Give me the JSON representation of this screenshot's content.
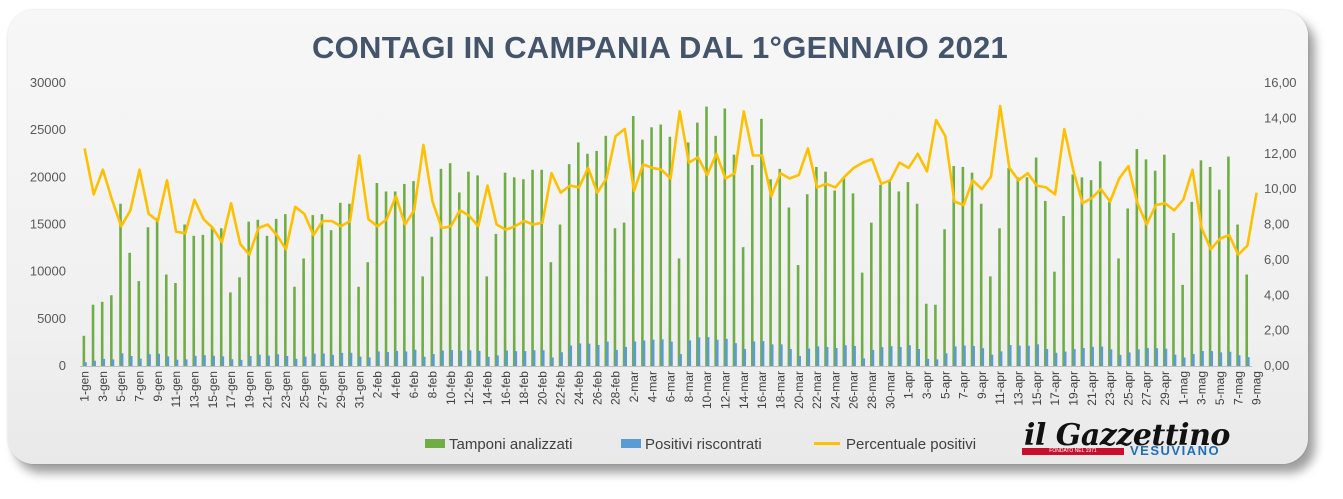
{
  "chart_data": {
    "type": "bar+line",
    "title": "CONTAGI IN CAMPANIA DAL 1°GENNAIO 2021",
    "x_tick_labels": [
      "1-gen",
      "3-gen",
      "5-gen",
      "7-gen",
      "9-gen",
      "11-gen",
      "13-gen",
      "15-gen",
      "17-gen",
      "19-gen",
      "21-gen",
      "23-gen",
      "25-gen",
      "27-gen",
      "29-gen",
      "31-gen",
      "2-feb",
      "4-feb",
      "6-feb",
      "8-feb",
      "10-feb",
      "12-feb",
      "14-feb",
      "16-feb",
      "18-feb",
      "20-feb",
      "22-feb",
      "24-feb",
      "26-feb",
      "28-feb",
      "2-mar",
      "4-mar",
      "6-mar",
      "8-mar",
      "10-mar",
      "12-mar",
      "14-mar",
      "16-mar",
      "18-mar",
      "20-mar",
      "22-mar",
      "24-mar",
      "26-mar",
      "28-mar",
      "30-mar",
      "1-apr",
      "3-apr",
      "5-apr",
      "7-apr",
      "9-apr",
      "11-apr",
      "13-apr",
      "15-apr",
      "17-apr",
      "19-apr",
      "21-apr",
      "23-apr",
      "25-apr",
      "27-apr",
      "29-apr",
      "1-mag",
      "3-mag",
      "5-mag",
      "7-mag",
      "9-mag"
    ],
    "y_left": {
      "min": 0,
      "max": 30000,
      "ticks": [
        "0",
        "5000",
        "10000",
        "15000",
        "20000",
        "25000",
        "30000"
      ]
    },
    "y_right": {
      "min": 0,
      "max": 16,
      "ticks": [
        "0,00",
        "2,00",
        "4,00",
        "6,00",
        "8,00",
        "10,00",
        "12,00",
        "14,00",
        "16,00"
      ]
    },
    "grid": false,
    "legend_position": "bottom",
    "series": [
      {
        "name": "Tamponi analizzati",
        "kind": "bar",
        "axis": "left",
        "color": "#70ad47",
        "values": [
          3200,
          6500,
          6800,
          7500,
          17200,
          12000,
          9000,
          14700,
          15700,
          9700,
          8800,
          15000,
          13800,
          13900,
          14600,
          14600,
          7800,
          9400,
          15300,
          15500,
          13800,
          15600,
          16100,
          8400,
          11400,
          16000,
          16100,
          14400,
          17300,
          17200,
          8400,
          11000,
          19400,
          18500,
          18500,
          19300,
          19600,
          9500,
          13700,
          20900,
          21500,
          18400,
          20600,
          20200,
          9500,
          14000,
          20500,
          20000,
          19800,
          20800,
          20800,
          11000,
          15000,
          21400,
          23700,
          22500,
          22800,
          24400,
          14600,
          15200,
          26500,
          24000,
          25300,
          25600,
          24300,
          11400,
          23700,
          25800,
          27500,
          24400,
          27300,
          22400,
          12600,
          21300,
          26200,
          19800,
          20900,
          16800,
          10700,
          18200,
          21100,
          20600,
          18600,
          20000,
          18300,
          9900,
          15200,
          19200,
          19600,
          18500,
          19500,
          17200,
          6600,
          6500,
          14500,
          21200,
          21100,
          20500,
          17200,
          9500,
          14600,
          21000,
          20000,
          20000,
          22100,
          17500,
          10000,
          15900,
          20300,
          20000,
          19700,
          21700,
          17400,
          11400,
          16700,
          23000,
          21900,
          20700,
          22400,
          14100,
          8600,
          17400,
          21800,
          21100,
          18700,
          22200,
          15000,
          9700
        ]
      },
      {
        "name": "Positivi riscontrati",
        "kind": "bar",
        "axis": "left",
        "color": "#5b9bd5",
        "values": [
          400,
          560,
          750,
          700,
          1350,
          1060,
          780,
          1250,
          1300,
          1020,
          670,
          700,
          1080,
          1150,
          1080,
          1020,
          720,
          650,
          1050,
          1200,
          1100,
          1240,
          1060,
          760,
          1000,
          1310,
          1320,
          1180,
          1390,
          1400,
          1000,
          910,
          1540,
          1480,
          1600,
          1540,
          1720,
          980,
          1270,
          1640,
          1690,
          1620,
          1660,
          1600,
          970,
          1120,
          1640,
          1570,
          1580,
          1670,
          1670,
          900,
          1460,
          2170,
          2390,
          2370,
          2230,
          2590,
          1710,
          2020,
          2600,
          2700,
          2790,
          2820,
          2580,
          1260,
          2710,
          3040,
          3060,
          2780,
          2880,
          2420,
          1810,
          2600,
          2640,
          2290,
          2300,
          1800,
          1070,
          1850,
          2080,
          2020,
          1910,
          2200,
          2120,
          800,
          1700,
          2000,
          2100,
          2020,
          2200,
          1800,
          750,
          700,
          1350,
          2080,
          2160,
          2120,
          1890,
          1200,
          1550,
          2220,
          2150,
          2150,
          2300,
          1800,
          1400,
          1530,
          1790,
          1900,
          2030,
          2060,
          1760,
          1180,
          1440,
          1760,
          1900,
          1890,
          1830,
          1200,
          900,
          1270,
          1590,
          1580,
          1440,
          1510,
          1140,
          940
        ]
      },
      {
        "name": "Percentuale positivi",
        "kind": "line",
        "axis": "right",
        "color": "#ffc000",
        "values": [
          12.3,
          9.7,
          11.1,
          9.4,
          7.9,
          8.8,
          11.1,
          8.6,
          8.2,
          10.5,
          7.6,
          7.5,
          9.4,
          8.3,
          7.8,
          7.0,
          9.2,
          6.9,
          6.3,
          7.8,
          8.0,
          7.4,
          6.6,
          9.0,
          8.6,
          7.4,
          8.2,
          8.2,
          7.9,
          8.2,
          11.9,
          8.3,
          7.9,
          8.3,
          9.6,
          8.0,
          8.8,
          12.5,
          9.3,
          7.8,
          7.9,
          8.8,
          8.5,
          7.9,
          10.2,
          8.0,
          7.7,
          7.9,
          8.2,
          8.0,
          8.1,
          10.9,
          9.8,
          10.2,
          10.1,
          11.2,
          9.8,
          10.6,
          13.0,
          13.4,
          9.9,
          11.4,
          11.2,
          11.1,
          10.6,
          14.4,
          11.5,
          11.8,
          10.8,
          12.0,
          10.6,
          10.9,
          14.4,
          11.9,
          11.9,
          9.6,
          10.9,
          10.6,
          10.8,
          12.3,
          10.1,
          10.3,
          10.1,
          10.7,
          11.2,
          11.5,
          11.7,
          10.3,
          10.5,
          11.5,
          11.2,
          12.0,
          11.0,
          13.9,
          13.0,
          9.3,
          9.1,
          10.5,
          10.0,
          10.7,
          14.7,
          11.2,
          10.5,
          10.9,
          10.2,
          10.1,
          9.7,
          13.4,
          11.0,
          9.2,
          9.5,
          10.0,
          9.3,
          10.6,
          11.3,
          9.2,
          8.0,
          9.1,
          9.2,
          8.8,
          9.4,
          11.1,
          7.8,
          6.6,
          7.2,
          7.4,
          6.3,
          6.8,
          9.8
        ]
      }
    ]
  },
  "logo": {
    "name": "il Gazzettino",
    "tagline": "FONDATO NEL 1971",
    "sub": "VESUVIANO"
  }
}
